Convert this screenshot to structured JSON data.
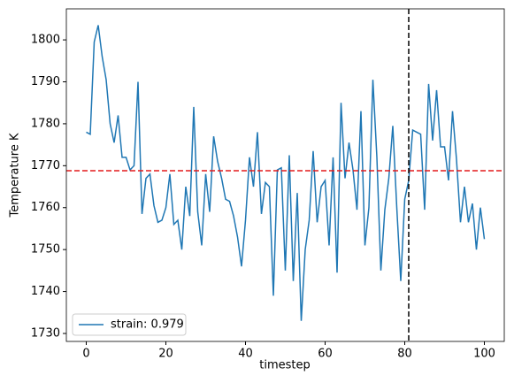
{
  "chart_data": {
    "type": "line",
    "xlabel": "timestep",
    "ylabel": "Temperature K",
    "x": [
      0,
      1,
      2,
      3,
      4,
      5,
      6,
      7,
      8,
      9,
      10,
      11,
      12,
      13,
      14,
      15,
      16,
      17,
      18,
      19,
      20,
      21,
      22,
      23,
      24,
      25,
      26,
      27,
      28,
      29,
      30,
      31,
      32,
      33,
      34,
      35,
      36,
      37,
      38,
      39,
      40,
      41,
      42,
      43,
      44,
      45,
      46,
      47,
      48,
      49,
      50,
      51,
      52,
      53,
      54,
      55,
      56,
      57,
      58,
      59,
      60,
      61,
      62,
      63,
      64,
      65,
      66,
      67,
      68,
      69,
      70,
      71,
      72,
      73,
      74,
      75,
      76,
      77,
      78,
      79,
      80,
      81,
      82,
      83,
      84,
      85,
      86,
      87,
      88,
      89,
      90,
      91,
      92,
      93,
      94,
      95,
      96,
      97,
      98,
      99,
      100
    ],
    "series": [
      {
        "name": "strain: 0.979",
        "color": "#1f77b4",
        "values": [
          1778,
          1777.5,
          1799.5,
          1803.5,
          1796,
          1790.5,
          1780,
          1775.5,
          1782,
          1772,
          1772,
          1769,
          1770,
          1790,
          1758.5,
          1767,
          1768,
          1760.5,
          1756.5,
          1757,
          1760,
          1768,
          1756,
          1757,
          1750,
          1765,
          1758,
          1784,
          1759,
          1751,
          1768,
          1759,
          1777,
          1771,
          1767,
          1762,
          1761.5,
          1758,
          1753,
          1746,
          1757,
          1772,
          1765,
          1778,
          1758.5,
          1766,
          1765,
          1739,
          1769,
          1769.5,
          1745,
          1772.5,
          1742.5,
          1763.5,
          1733,
          1750,
          1757,
          1773.5,
          1756.5,
          1765,
          1766.5,
          1751,
          1772,
          1744.5,
          1785,
          1767,
          1775.5,
          1769,
          1759.5,
          1783,
          1751,
          1760,
          1790.5,
          1772,
          1745,
          1759.5,
          1767,
          1779.5,
          1760,
          1742.5,
          1762,
          1766.5,
          1778.5,
          1778,
          1777.5,
          1759.5,
          1789.5,
          1776,
          1788,
          1774.5,
          1774.5,
          1766.5,
          1783,
          1771.5,
          1756.5,
          1765,
          1756.5,
          1761,
          1750,
          1760,
          1752.5
        ]
      }
    ],
    "hline": {
      "value": 1768.8,
      "color": "#e41a1c"
    },
    "vline": {
      "value": 81,
      "color": "#000000"
    },
    "xlim": [
      -5,
      105
    ],
    "xticks": [
      0,
      20,
      40,
      60,
      80,
      100
    ],
    "ylim": [
      1728.1,
      1807.4
    ],
    "yticks": [
      1730,
      1740,
      1750,
      1760,
      1770,
      1780,
      1790,
      1800
    ],
    "legend": "lower left",
    "grid": false
  }
}
